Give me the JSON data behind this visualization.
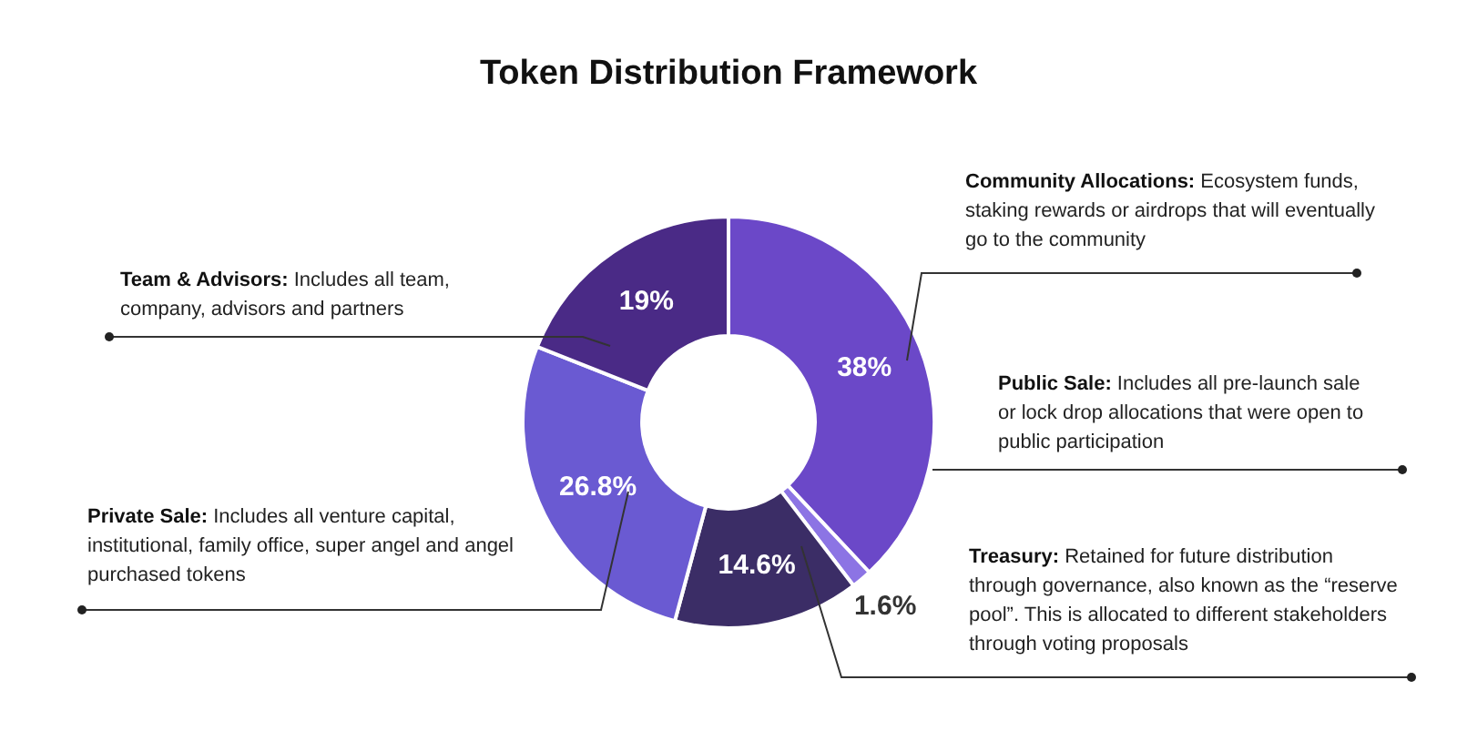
{
  "chart_data": {
    "type": "donut",
    "title": "Token Distribution Framework",
    "categories": [
      null,
      null,
      null,
      null,
      null
    ],
    "values": [
      38,
      1.6,
      14.6,
      26.8,
      19
    ],
    "colors": [
      "#6b48c8",
      "#8c74e4",
      "#3b2d66",
      "#6a5ad2",
      "#4a2a86"
    ],
    "value_labels": [
      "38%",
      "1.6%",
      "14.6%",
      "26.8%",
      "19%"
    ],
    "legend": false,
    "annotations": [
      "Community Allocations: Ecosystem funds, staking rewards or airdrops that will eventually go to the community",
      "Public Sale: Includes all pre-launch sale or lock drop allocations that were open to public participation",
      "Treasury: Retained for future distribution through governance, also known as the “reserve pool”. This is allocated to different stakeholders through voting proposals",
      "Private Sale: Includes all venture capital, institutional, family office, super angel and angel purchased tokens",
      "Team & Advisors: Includes all team, company, advisors and partners"
    ]
  }
}
